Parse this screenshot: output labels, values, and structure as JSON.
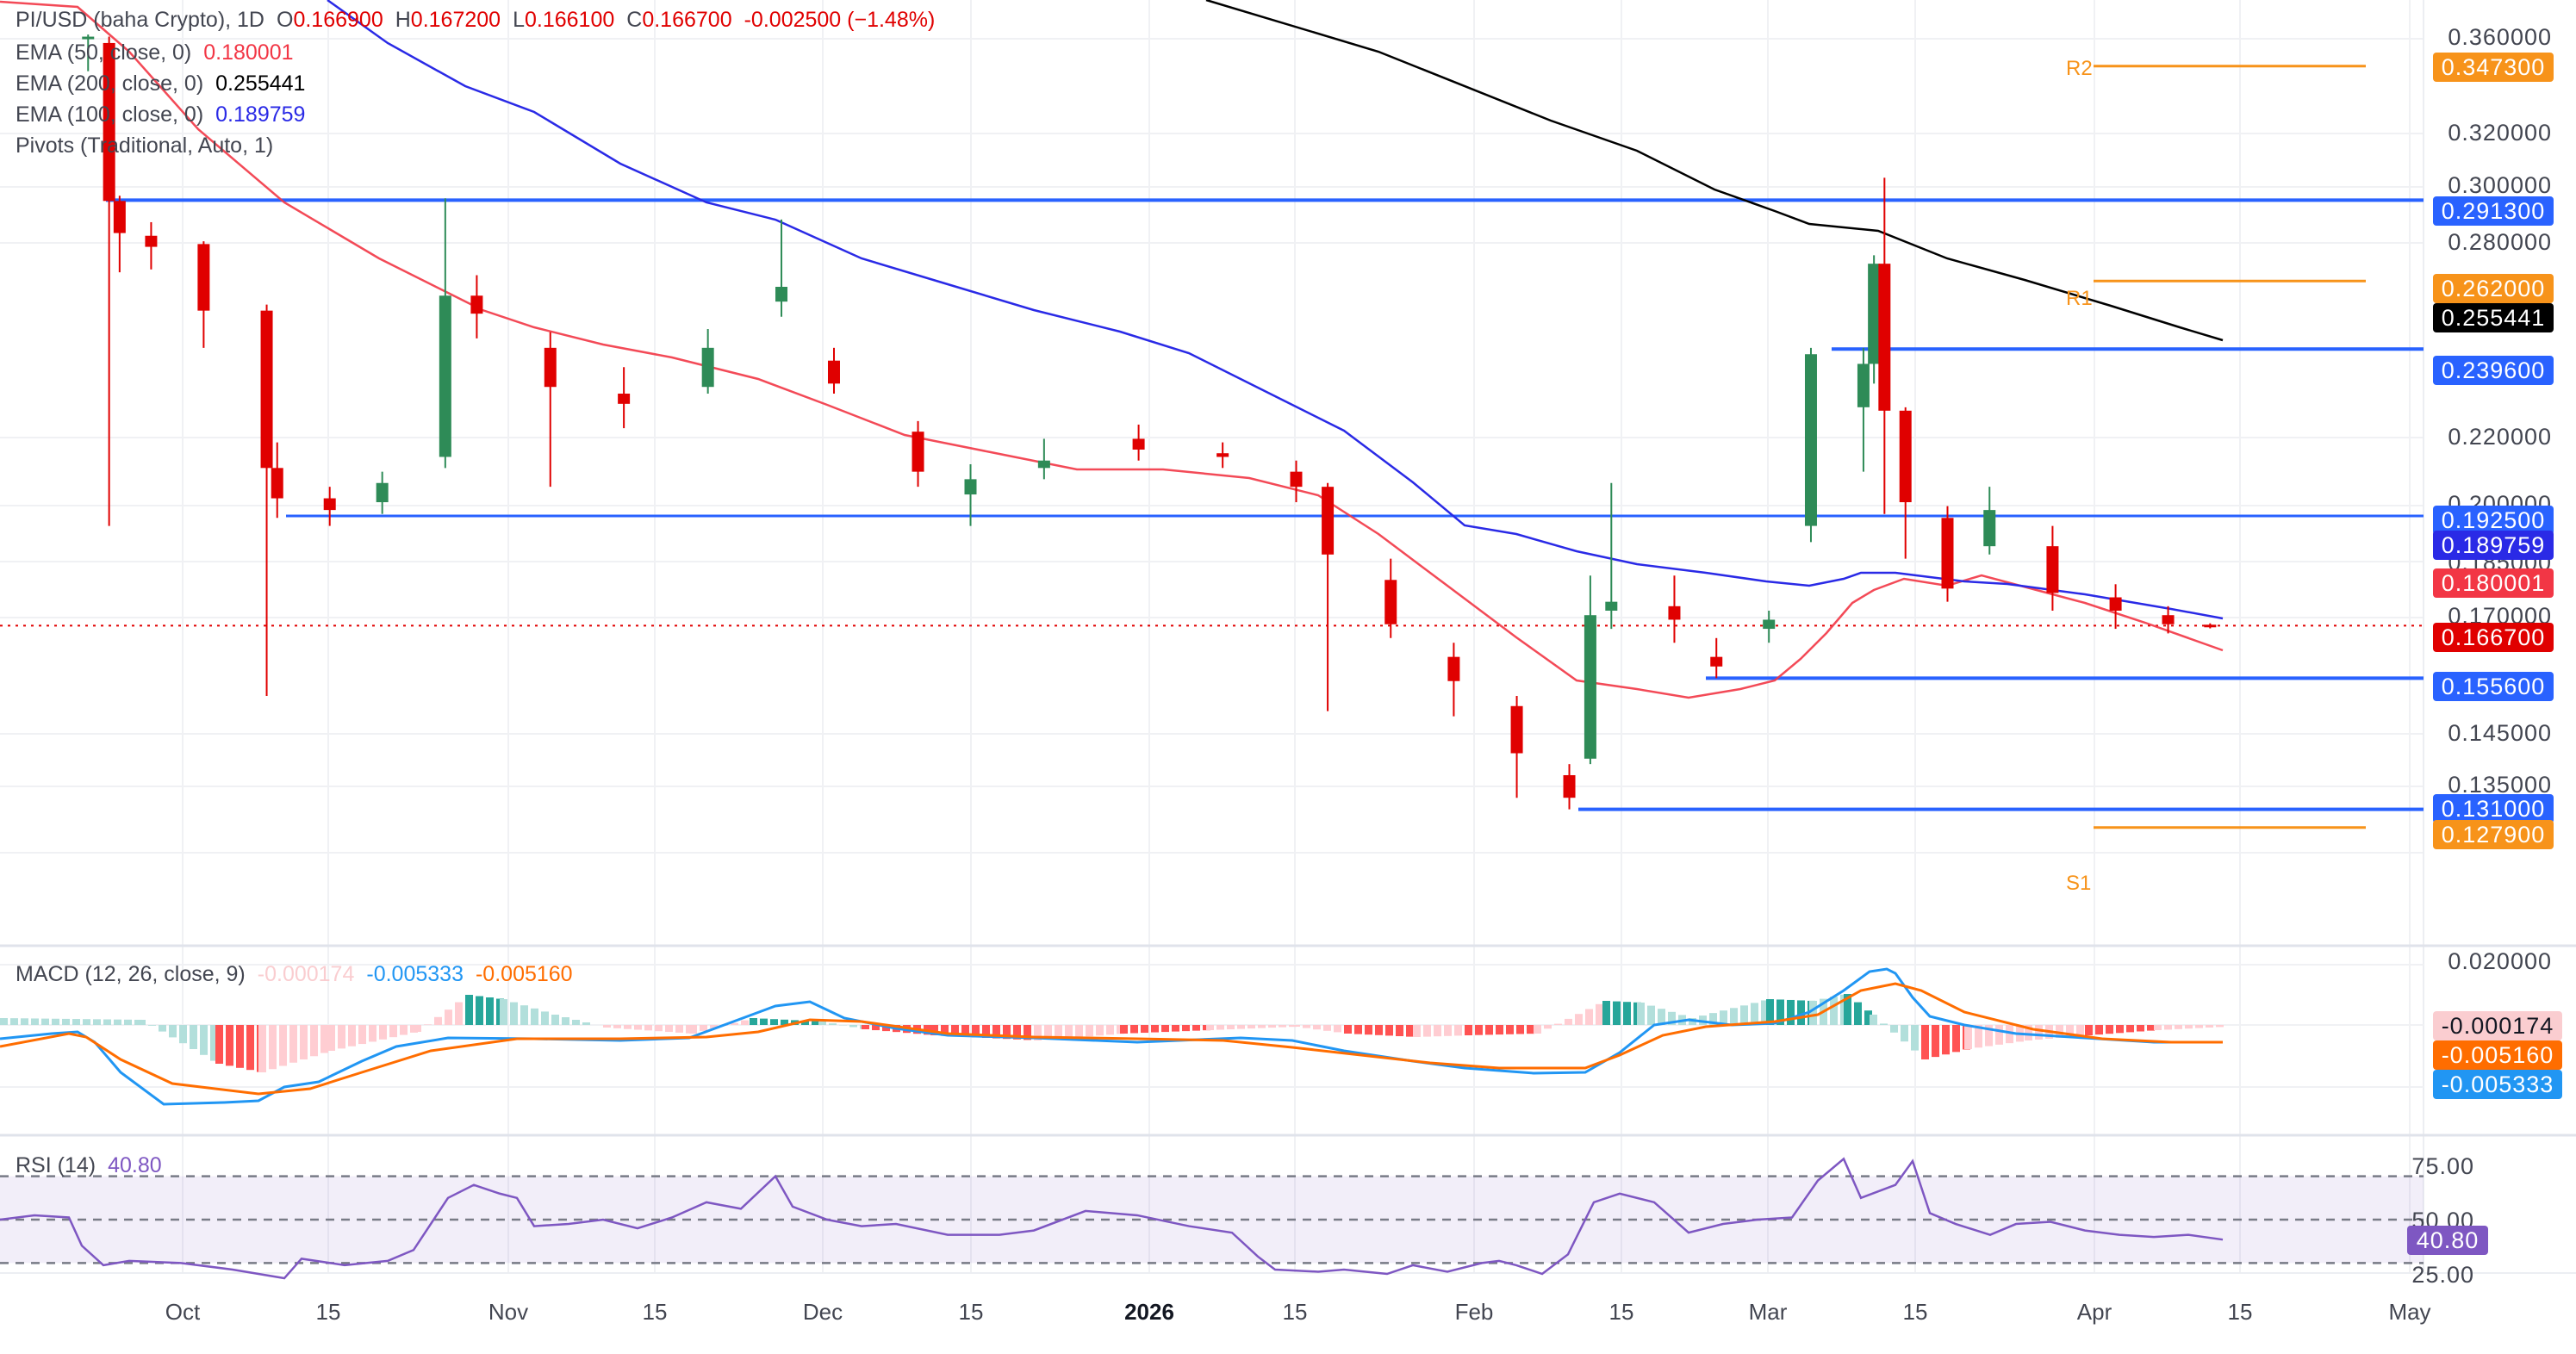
{
  "header": {
    "symbol": "PI/USD (baha Crypto), 1D",
    "o_label": "O",
    "open": "0.166900",
    "h_label": "H",
    "high": "0.167200",
    "l_label": "L",
    "low": "0.166100",
    "c_label": "C",
    "close": "0.166700",
    "change": "-0.002500 (−1.48%)"
  },
  "indicators": [
    {
      "label": "EMA (50, close, 0)",
      "value": "0.180001",
      "color": "#f23645"
    },
    {
      "label": "EMA (200, close, 0)",
      "value": "0.255441",
      "color": "#000000"
    },
    {
      "label": "EMA (100, close, 0)",
      "value": "0.189759",
      "color": "#2a2ae6"
    },
    {
      "label": "Pivots (Traditional, Auto, 1)",
      "value": "",
      "color": "#434651"
    }
  ],
  "macd": {
    "label": "MACD (12, 26, close, 9)",
    "hist": "-0.000174",
    "macd": "-0.005333",
    "signal": "-0.005160",
    "axis": [
      "0.020000"
    ],
    "tags": [
      {
        "value": "-0.000174",
        "bg": "#facdd0",
        "fg": "#131722"
      },
      {
        "value": "-0.005160",
        "bg": "#ff6d00",
        "fg": "#ffffff"
      },
      {
        "value": "-0.005333",
        "bg": "#2196f3",
        "fg": "#ffffff"
      }
    ]
  },
  "rsi": {
    "label": "RSI (14)",
    "value": "40.80",
    "axis": [
      "75.00",
      "50.00",
      "25.00"
    ],
    "tag": "40.80"
  },
  "price_axis": [
    "0.360000",
    "0.320000",
    "0.300000",
    "0.280000",
    "0.220000",
    "0.200000",
    "0.185000",
    "0.170000",
    "0.145000",
    "0.135000"
  ],
  "price_tags": [
    {
      "value": "0.347300",
      "bg": "#f7931a"
    },
    {
      "value": "0.291300",
      "bg": "#2962ff"
    },
    {
      "value": "0.262000",
      "bg": "#f7931a"
    },
    {
      "value": "0.255441",
      "bg": "#000000"
    },
    {
      "value": "0.239600",
      "bg": "#2962ff"
    },
    {
      "value": "0.192500",
      "bg": "#2962ff"
    },
    {
      "value": "0.189759",
      "bg": "#2a2ae6"
    },
    {
      "value": "0.180001",
      "bg": "#f23645"
    },
    {
      "value": "0.166700",
      "bg": "#e00000"
    },
    {
      "value": "0.155600",
      "bg": "#2962ff"
    },
    {
      "value": "0.131000",
      "bg": "#2962ff"
    },
    {
      "value": "0.127900",
      "bg": "#f7931a"
    }
  ],
  "pivots": [
    {
      "label": "R2",
      "value": 0.3473
    },
    {
      "label": "R1",
      "value": 0.262
    },
    {
      "label": "S1",
      "value": 0.1279
    }
  ],
  "x_axis": [
    "Oct",
    "15",
    "Nov",
    "15",
    "Dec",
    "15",
    "2026",
    "15",
    "Feb",
    "15",
    "Mar",
    "15",
    "Apr",
    "15",
    "May"
  ],
  "chart_data": {
    "type": "candlestick",
    "title": "PI/USD (baha Crypto), 1D",
    "scale": "log",
    "ylim": [
      0.12,
      0.37
    ],
    "last": {
      "open": 0.1669,
      "high": 0.1672,
      "low": 0.1661,
      "close": 0.1667,
      "change": -0.0025,
      "change_pct": -1.48
    },
    "horizontal_levels": [
      {
        "value": 0.2913,
        "color": "#2962ff",
        "kind": "resistance"
      },
      {
        "value": 0.2396,
        "color": "#2962ff",
        "kind": "resistance"
      },
      {
        "value": 0.1925,
        "color": "#2962ff",
        "kind": "support/resistance"
      },
      {
        "value": 0.1556,
        "color": "#2962ff",
        "kind": "support"
      },
      {
        "value": 0.131,
        "color": "#2962ff",
        "kind": "support"
      },
      {
        "value": 0.3473,
        "color": "#f7931a",
        "kind": "pivot R2"
      },
      {
        "value": 0.262,
        "color": "#f7931a",
        "kind": "pivot R1"
      },
      {
        "value": 0.1279,
        "color": "#f7931a",
        "kind": "pivot S1"
      }
    ],
    "series": [
      {
        "name": "EMA 50",
        "value": 0.180001,
        "color": "#f23645"
      },
      {
        "name": "EMA 100",
        "value": 0.189759,
        "color": "#2a2ae6"
      },
      {
        "name": "EMA 200",
        "value": 0.255441,
        "color": "#000000"
      }
    ],
    "candles_approx": [
      [
        "Sep 22",
        0.36,
        0.362,
        0.345,
        0.361
      ],
      [
        "Sep 24",
        0.358,
        0.361,
        0.19,
        0.291
      ],
      [
        "Sep 25",
        0.291,
        0.293,
        0.265,
        0.279
      ],
      [
        "Sep 28",
        0.278,
        0.283,
        0.266,
        0.274
      ],
      [
        "Oct 3",
        0.275,
        0.276,
        0.24,
        0.252
      ],
      [
        "Oct 9",
        0.252,
        0.254,
        0.152,
        0.205
      ],
      [
        "Oct 10",
        0.205,
        0.212,
        0.192,
        0.197
      ],
      [
        "Oct 15",
        0.197,
        0.2,
        0.19,
        0.194
      ],
      [
        "Oct 20",
        0.196,
        0.204,
        0.193,
        0.201
      ],
      [
        "Oct 26",
        0.208,
        0.292,
        0.205,
        0.257
      ],
      [
        "Oct 29",
        0.257,
        0.264,
        0.243,
        0.251
      ],
      [
        "Nov 5",
        0.24,
        0.245,
        0.2,
        0.228
      ],
      [
        "Nov 12",
        0.226,
        0.234,
        0.216,
        0.223
      ],
      [
        "Nov 20",
        0.228,
        0.246,
        0.226,
        0.24
      ],
      [
        "Nov 27",
        0.255,
        0.284,
        0.25,
        0.26
      ],
      [
        "Dec 2",
        0.236,
        0.24,
        0.226,
        0.229
      ],
      [
        "Dec 10",
        0.215,
        0.218,
        0.2,
        0.204
      ],
      [
        "Dec 15",
        0.198,
        0.206,
        0.19,
        0.202
      ],
      [
        "Dec 22",
        0.205,
        0.213,
        0.202,
        0.207
      ],
      [
        "Dec 31",
        0.213,
        0.217,
        0.207,
        0.21
      ],
      [
        "Jan 8",
        0.209,
        0.212,
        0.205,
        0.208
      ],
      [
        "Jan 15",
        0.204,
        0.207,
        0.196,
        0.2
      ],
      [
        "Jan 18",
        0.2,
        0.201,
        0.149,
        0.183
      ],
      [
        "Jan 24",
        0.177,
        0.182,
        0.164,
        0.167
      ],
      [
        "Jan 30",
        0.16,
        0.163,
        0.148,
        0.155
      ],
      [
        "Feb 5",
        0.15,
        0.152,
        0.133,
        0.141
      ],
      [
        "Feb 10",
        0.137,
        0.139,
        0.131,
        0.133
      ],
      [
        "Feb 12",
        0.14,
        0.178,
        0.139,
        0.169
      ],
      [
        "Feb 14",
        0.17,
        0.201,
        0.166,
        0.172
      ],
      [
        "Feb 20",
        0.171,
        0.178,
        0.163,
        0.168
      ],
      [
        "Feb 24",
        0.16,
        0.164,
        0.1556,
        0.158
      ],
      [
        "Mar 1",
        0.166,
        0.17,
        0.163,
        0.168
      ],
      [
        "Mar 5",
        0.19,
        0.24,
        0.186,
        0.238
      ],
      [
        "Mar 10",
        0.222,
        0.24,
        0.204,
        0.235
      ],
      [
        "Mar 11",
        0.235,
        0.271,
        0.229,
        0.268
      ],
      [
        "Mar 12",
        0.268,
        0.3,
        0.193,
        0.221
      ],
      [
        "Mar 14",
        0.221,
        0.222,
        0.182,
        0.196
      ],
      [
        "Mar 18",
        0.192,
        0.195,
        0.172,
        0.175
      ],
      [
        "Mar 22",
        0.185,
        0.2,
        0.183,
        0.194
      ],
      [
        "Mar 28",
        0.185,
        0.19,
        0.17,
        0.174
      ],
      [
        "Apr 3",
        0.173,
        0.176,
        0.166,
        0.17
      ],
      [
        "Apr 8",
        0.169,
        0.171,
        0.165,
        0.167
      ],
      [
        "Apr 12",
        0.1669,
        0.1672,
        0.1661,
        0.1667
      ]
    ],
    "macd": {
      "macd_line": -0.005333,
      "signal": -0.00516,
      "histogram": -0.000174,
      "axis_tick": 0.02
    },
    "rsi": {
      "period": 14,
      "value": 40.8,
      "bands": [
        30,
        50,
        70
      ],
      "axis_ticks": [
        25,
        50,
        75
      ]
    }
  }
}
